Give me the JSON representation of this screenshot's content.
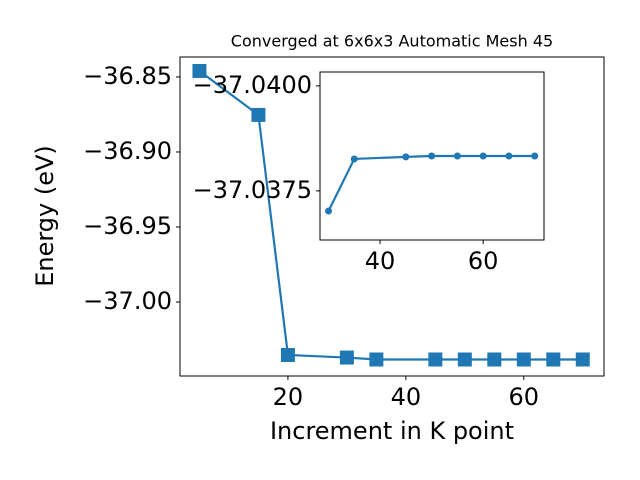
{
  "chart_data": [
    {
      "type": "line",
      "title": "Converged at 6x6x3 Automatic Mesh 45",
      "x_label": "Increment in K point",
      "y_label": "Energy (eV)",
      "x": [
        5,
        15,
        20,
        30,
        35,
        45,
        50,
        55,
        60,
        65,
        70
      ],
      "series": [
        {
          "color": "#1f77b4",
          "marker": "square",
          "values": [
            -36.846,
            -36.8753,
            -37.0353,
            -37.037,
            -37.0383,
            -37.0383,
            -37.0383,
            -37.0383,
            -37.0383,
            -37.0383,
            -37.0383
          ]
        }
      ],
      "xlim": [
        1.7,
        73.6
      ],
      "ylim": [
        -37.0493,
        -36.8367
      ],
      "xticks": [
        20,
        40,
        60
      ],
      "yticks": [
        {
          "value": -36.85,
          "label": "−36.85"
        },
        {
          "value": -36.9,
          "label": "−36.90"
        },
        {
          "value": -36.95,
          "label": "−36.95"
        },
        {
          "value": -37.0,
          "label": "−37.00"
        }
      ]
    },
    {
      "type": "line",
      "x": [
        30,
        35,
        45,
        50,
        55,
        60,
        65,
        70
      ],
      "series": [
        {
          "color": "#1f77b4",
          "marker": "circle",
          "values": [
            -37.03702,
            -37.03826,
            -37.03831,
            -37.03833,
            -37.03833,
            -37.03833,
            -37.03833,
            -37.03833
          ]
        }
      ],
      "xlim": [
        28.35,
        71.8
      ],
      "ylim": [
        -37.03633,
        -37.04033
      ],
      "xticks": [
        40,
        60
      ],
      "yticks": [
        {
          "value": -37.04,
          "label": "−37.0400"
        },
        {
          "value": -37.0375,
          "label": "−37.0375"
        }
      ]
    }
  ]
}
